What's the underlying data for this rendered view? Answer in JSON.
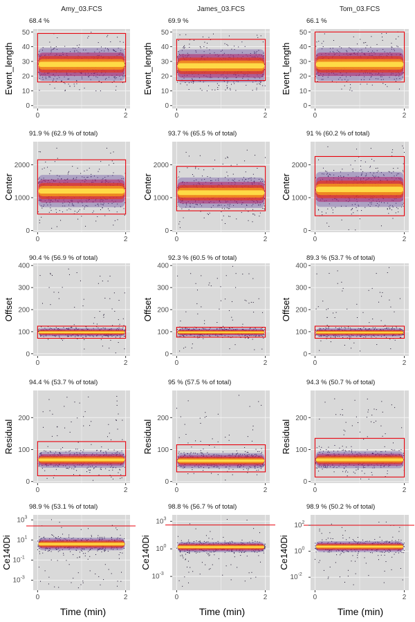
{
  "figure": {
    "xlabel": "Time (min)"
  },
  "chart_data": {
    "type": "scatter",
    "samples": [
      "Amy_03.FCS",
      "James_03.FCS",
      "Tom_03.FCS"
    ],
    "xlim": [
      -0.1,
      2.1
    ],
    "x_ticks": [
      0,
      2
    ],
    "xlabel": "Time (min)",
    "rows": [
      {
        "ylabel": "Event_length",
        "scale": "linear",
        "ylim": [
          -2,
          52
        ],
        "y_ticks": [
          0,
          10,
          20,
          30,
          40,
          50
        ],
        "y_tick_labels": [
          "0",
          "10",
          "20",
          "30",
          "40",
          "50"
        ],
        "panels": [
          {
            "label": "68.4 %",
            "gate": {
              "kind": "rect",
              "x": [
                0,
                2
              ],
              "y": [
                16,
                49
              ]
            },
            "center": 28,
            "spread": 8,
            "ymin": 10,
            "ymax": 50
          },
          {
            "label": "69.9 %",
            "gate": {
              "kind": "rect",
              "x": [
                0,
                2
              ],
              "y": [
                17,
                45
              ]
            },
            "center": 27,
            "spread": 8,
            "ymin": 10,
            "ymax": 50
          },
          {
            "label": "66.1 %",
            "gate": {
              "kind": "rect",
              "x": [
                0,
                2
              ],
              "y": [
                16,
                50
              ]
            },
            "center": 28,
            "spread": 8,
            "ymin": 10,
            "ymax": 50
          }
        ]
      },
      {
        "ylabel": "Center",
        "scale": "linear",
        "ylim": [
          -50,
          2700
        ],
        "y_ticks": [
          0,
          1000,
          2000
        ],
        "y_tick_labels": [
          "0",
          "1000",
          "2000"
        ],
        "panels": [
          {
            "label": "91.9 % (62.9 % of total)",
            "gate": {
              "kind": "rect",
              "x": [
                0,
                2
              ],
              "y": [
                500,
                2150
              ]
            },
            "center": 1200,
            "spread": 350,
            "ymin": 0,
            "ymax": 2600
          },
          {
            "label": "93.7 % (65.5 % of total)",
            "gate": {
              "kind": "rect",
              "x": [
                0,
                2
              ],
              "y": [
                600,
                1950
              ]
            },
            "center": 1150,
            "spread": 330,
            "ymin": 0,
            "ymax": 2600
          },
          {
            "label": "91 % (60.2 % of total)",
            "gate": {
              "kind": "rect",
              "x": [
                0,
                2
              ],
              "y": [
                450,
                2250
              ]
            },
            "center": 1250,
            "spread": 380,
            "ymin": 0,
            "ymax": 2600
          }
        ]
      },
      {
        "ylabel": "Offset",
        "scale": "linear",
        "ylim": [
          -10,
          410
        ],
        "y_ticks": [
          0,
          100,
          200,
          300,
          400
        ],
        "y_tick_labels": [
          "0",
          "100",
          "200",
          "300",
          "400"
        ],
        "panels": [
          {
            "label": "90.4 % (56.9 % of total)",
            "gate": {
              "kind": "rect",
              "x": [
                0,
                2
              ],
              "y": [
                70,
                125
              ]
            },
            "center": 97,
            "spread": 14,
            "ymin": 0,
            "ymax": 400
          },
          {
            "label": "92.3 % (60.5 % of total)",
            "gate": {
              "kind": "rect",
              "x": [
                0,
                2
              ],
              "y": [
                75,
                120
              ]
            },
            "center": 97,
            "spread": 13,
            "ymin": 0,
            "ymax": 400
          },
          {
            "label": "89.3 % (53.7 % of total)",
            "gate": {
              "kind": "rect",
              "x": [
                0,
                2
              ],
              "y": [
                70,
                125
              ]
            },
            "center": 96,
            "spread": 14,
            "ymin": 0,
            "ymax": 400
          }
        ]
      },
      {
        "ylabel": "Residual",
        "scale": "linear",
        "ylim": [
          -5,
          285
        ],
        "y_ticks": [
          0,
          100,
          200
        ],
        "y_tick_labels": [
          "0",
          "100",
          "200"
        ],
        "panels": [
          {
            "label": "94.4 % (53.7 % of total)",
            "gate": {
              "kind": "rect",
              "x": [
                0,
                2
              ],
              "y": [
                18,
                125
              ]
            },
            "center": 68,
            "spread": 18,
            "ymin": 0,
            "ymax": 270
          },
          {
            "label": "95 % (57.5 % of total)",
            "gate": {
              "kind": "rect",
              "x": [
                0,
                2
              ],
              "y": [
                30,
                115
              ]
            },
            "center": 65,
            "spread": 17,
            "ymin": 0,
            "ymax": 270
          },
          {
            "label": "94.3 % (50.7 % of total)",
            "gate": {
              "kind": "rect",
              "x": [
                0,
                2
              ],
              "y": [
                14,
                135
              ]
            },
            "center": 68,
            "spread": 19,
            "ymin": 0,
            "ymax": 270
          }
        ]
      },
      {
        "ylabel": "Ce140Di",
        "scale": "log10",
        "panels": [
          {
            "label": "98.9 % (53.1 % of total)",
            "ylim_exp": [
              -4,
              3.5
            ],
            "y_tick_exps": [
              -3,
              -1,
              1,
              3
            ],
            "gate": {
              "kind": "hline",
              "y_exp": 2.4
            },
            "center_exp": 0.6,
            "spread_exp": 0.45,
            "ymin_exp": -3.8,
            "ymax_exp": 3.1
          },
          {
            "label": "98.8 % (56.7 % of total)",
            "ylim_exp": [
              -4.5,
              3.7
            ],
            "y_tick_exps": [
              -3,
              0,
              3
            ],
            "gate": {
              "kind": "hline",
              "y_exp": 2.6
            },
            "center_exp": 0.2,
            "spread_exp": 0.4,
            "ymin_exp": -4.2,
            "ymax_exp": 3.3
          },
          {
            "label": "98.9 % (50.2 % of total)",
            "ylim_exp": [
              -3,
              2.8
            ],
            "y_tick_exps": [
              -2,
              0,
              2
            ],
            "gate": {
              "kind": "hline",
              "y_exp": 2.0
            },
            "center_exp": 0.35,
            "spread_exp": 0.3,
            "ymin_exp": -2.6,
            "ymax_exp": 2.3
          }
        ]
      }
    ]
  }
}
